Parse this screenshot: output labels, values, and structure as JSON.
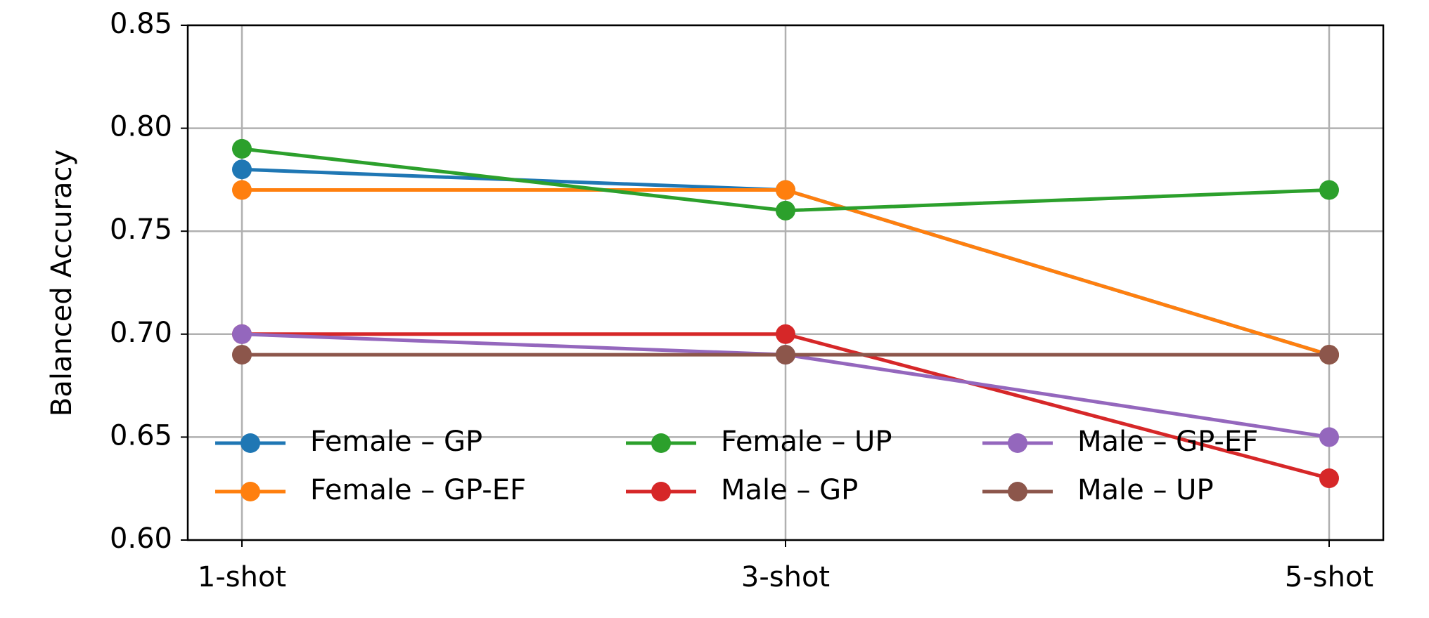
{
  "chart_data": {
    "type": "line",
    "ylabel": "Balanced Accuracy",
    "categories": [
      "1-shot",
      "3-shot",
      "5-shot"
    ],
    "series": [
      {
        "name": "Female – GP",
        "color": "#1f77b4",
        "values": [
          0.78,
          0.77,
          0.69
        ]
      },
      {
        "name": "Female – GP-EF",
        "color": "#ff7f0e",
        "values": [
          0.77,
          0.77,
          0.69
        ]
      },
      {
        "name": "Female – UP",
        "color": "#2ca02c",
        "values": [
          0.79,
          0.76,
          0.77
        ]
      },
      {
        "name": "Male – GP",
        "color": "#d62728",
        "values": [
          0.7,
          0.7,
          0.63
        ]
      },
      {
        "name": "Male – GP-EF",
        "color": "#9467bd",
        "values": [
          0.7,
          0.69,
          0.65
        ]
      },
      {
        "name": "Male – UP",
        "color": "#8c564b",
        "values": [
          0.69,
          0.69,
          0.69
        ]
      }
    ],
    "ylim": [
      0.6,
      0.85
    ],
    "yticks": [
      {
        "value": 0.6,
        "label": "0.60"
      },
      0.65,
      {
        "value": 0.7,
        "label": "0.70"
      },
      0.75,
      {
        "value": 0.8,
        "label": "0.80"
      },
      0.85
    ],
    "grid": true,
    "legend": "lower-left"
  }
}
